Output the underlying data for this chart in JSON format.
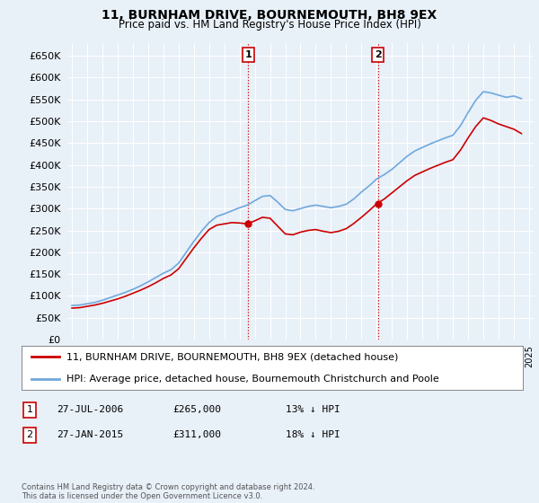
{
  "title": "11, BURNHAM DRIVE, BOURNEMOUTH, BH8 9EX",
  "subtitle": "Price paid vs. HM Land Registry's House Price Index (HPI)",
  "background_color": "#e8f0f8",
  "plot_bg_color": "#e8f0f8",
  "grid_color": "#ffffff",
  "hpi_color": "#6fa8dc",
  "price_color": "#cc0000",
  "marker_color": "#cc0000",
  "sale1_date": 2006.57,
  "sale1_price": 265000,
  "sale2_date": 2015.08,
  "sale2_price": 311000,
  "legend_line1": "11, BURNHAM DRIVE, BOURNEMOUTH, BH8 9EX (detached house)",
  "legend_line2": "HPI: Average price, detached house, Bournemouth Christchurch and Poole",
  "table_row1": [
    "1",
    "27-JUL-2006",
    "£265,000",
    "13% ↓ HPI"
  ],
  "table_row2": [
    "2",
    "27-JAN-2015",
    "£311,000",
    "18% ↓ HPI"
  ],
  "footnote": "Contains HM Land Registry data © Crown copyright and database right 2024.\nThis data is licensed under the Open Government Licence v3.0.",
  "xstart": 1995,
  "xend": 2025,
  "ylim": [
    0,
    680000
  ],
  "yticks": [
    0,
    50000,
    100000,
    150000,
    200000,
    250000,
    300000,
    350000,
    400000,
    450000,
    500000,
    550000,
    600000,
    650000
  ],
  "years_hpi": [
    1995.0,
    1995.5,
    1996.0,
    1996.5,
    1997.0,
    1997.5,
    1998.0,
    1998.5,
    1999.0,
    1999.5,
    2000.0,
    2000.5,
    2001.0,
    2001.5,
    2002.0,
    2002.5,
    2003.0,
    2003.5,
    2004.0,
    2004.5,
    2005.0,
    2005.5,
    2006.0,
    2006.5,
    2007.0,
    2007.5,
    2008.0,
    2008.5,
    2009.0,
    2009.5,
    2010.0,
    2010.5,
    2011.0,
    2011.5,
    2012.0,
    2012.5,
    2013.0,
    2013.5,
    2014.0,
    2014.5,
    2015.0,
    2015.5,
    2016.0,
    2016.5,
    2017.0,
    2017.5,
    2018.0,
    2018.5,
    2019.0,
    2019.5,
    2020.0,
    2020.5,
    2021.0,
    2021.5,
    2022.0,
    2022.5,
    2023.0,
    2023.5,
    2024.0,
    2024.5
  ],
  "hpi_values": [
    78000,
    79000,
    82000,
    85000,
    90000,
    96000,
    102000,
    108000,
    115000,
    123000,
    132000,
    142000,
    152000,
    160000,
    175000,
    200000,
    225000,
    248000,
    268000,
    282000,
    288000,
    295000,
    302000,
    308000,
    318000,
    328000,
    330000,
    315000,
    298000,
    295000,
    300000,
    305000,
    308000,
    305000,
    302000,
    305000,
    310000,
    322000,
    338000,
    352000,
    368000,
    378000,
    390000,
    405000,
    420000,
    432000,
    440000,
    448000,
    455000,
    462000,
    468000,
    490000,
    520000,
    548000,
    568000,
    565000,
    560000,
    555000,
    558000,
    552000
  ],
  "years_price": [
    1995.0,
    1995.5,
    1996.0,
    1996.5,
    1997.0,
    1997.5,
    1998.0,
    1998.5,
    1999.0,
    1999.5,
    2000.0,
    2000.5,
    2001.0,
    2001.5,
    2002.0,
    2002.5,
    2003.0,
    2003.5,
    2004.0,
    2004.5,
    2005.0,
    2005.5,
    2006.0,
    2006.5,
    2007.0,
    2007.5,
    2008.0,
    2008.5,
    2009.0,
    2009.5,
    2010.0,
    2010.5,
    2011.0,
    2011.5,
    2012.0,
    2012.5,
    2013.0,
    2013.5,
    2014.0,
    2014.5,
    2015.0,
    2015.5,
    2016.0,
    2016.5,
    2017.0,
    2017.5,
    2018.0,
    2018.5,
    2019.0,
    2019.5,
    2020.0,
    2020.5,
    2021.0,
    2021.5,
    2022.0,
    2022.5,
    2023.0,
    2023.5,
    2024.0,
    2024.5
  ],
  "price_values": [
    72000,
    73000,
    76000,
    79000,
    83000,
    88000,
    93000,
    99000,
    106000,
    113000,
    121000,
    130000,
    140000,
    148000,
    162000,
    186000,
    210000,
    232000,
    252000,
    262000,
    265000,
    268000,
    267000,
    265000,
    272000,
    280000,
    278000,
    260000,
    242000,
    240000,
    246000,
    250000,
    252000,
    248000,
    245000,
    248000,
    254000,
    266000,
    280000,
    295000,
    311000,
    322000,
    336000,
    350000,
    364000,
    376000,
    384000,
    392000,
    399000,
    406000,
    412000,
    434000,
    462000,
    488000,
    508000,
    502000,
    494000,
    488000,
    482000,
    472000
  ]
}
